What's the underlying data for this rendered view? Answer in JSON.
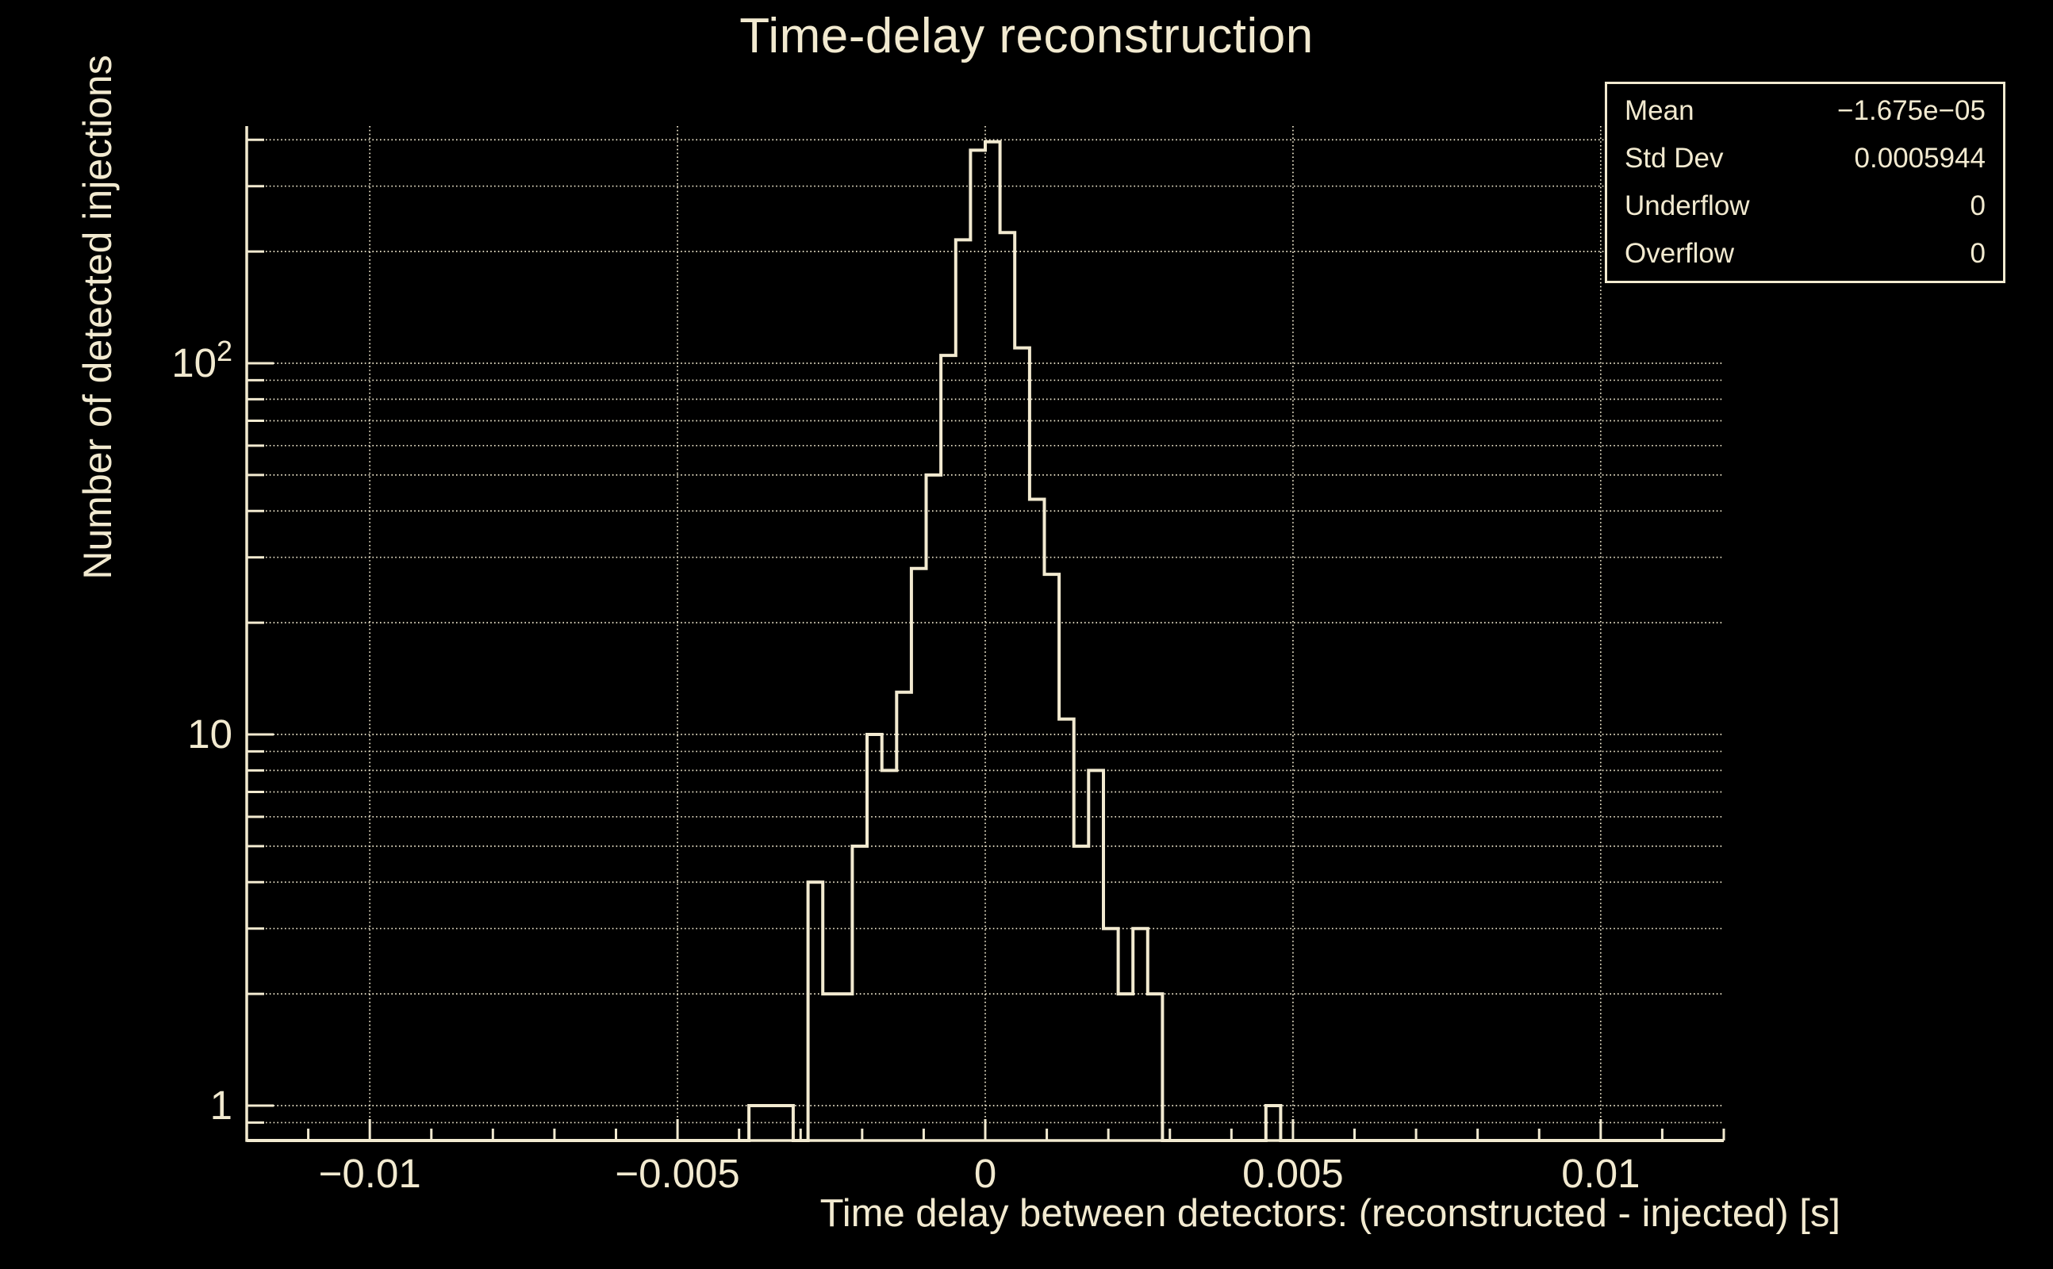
{
  "page": {
    "background": "#000000",
    "foreground": "#f2ead0"
  },
  "title": "Time-delay reconstruction",
  "stats_box": {
    "rows": [
      {
        "label": "Mean",
        "value": "−1.675e−05"
      },
      {
        "label": "Std Dev",
        "value": "0.0005944"
      },
      {
        "label": "Underflow",
        "value": "0"
      },
      {
        "label": "Overflow",
        "value": "0"
      }
    ]
  },
  "chart_data": {
    "type": "bar",
    "subtype": "step-outline-histogram",
    "title": "Time-delay reconstruction",
    "xlabel": "Time delay between detectors: (reconstructed - injected) [s]",
    "ylabel": "Number of detected injections",
    "legend_position": "none",
    "x_axis": {
      "min": -0.012,
      "max": 0.012,
      "major_ticks": [
        -0.01,
        -0.005,
        0,
        0.005,
        0.01
      ],
      "major_tick_labels": [
        "−0.01",
        "−0.005",
        "0",
        "0.005",
        "0.01"
      ],
      "minor_tick_step": 0.001
    },
    "y_axis": {
      "scale": "log",
      "min": 0.8,
      "max": 436,
      "major_ticks": [
        1,
        10,
        100
      ],
      "major_tick_labels": [
        "1",
        "10",
        "10^2"
      ]
    },
    "grid": {
      "style": "dotted",
      "horizontal_at_all_log_ticks": true,
      "vertical_at_major_x_ticks": true
    },
    "bins": {
      "x_min": -0.012,
      "x_max": 0.012,
      "n_bins": 100,
      "bin_width": 0.00024,
      "counts": [
        0,
        0,
        0,
        0,
        0,
        0,
        0,
        0,
        0,
        0,
        0,
        0,
        0,
        0,
        0,
        0,
        0,
        0,
        0,
        0,
        0,
        0,
        0,
        0,
        0,
        0,
        0,
        0,
        0,
        0,
        0,
        0,
        0,
        0,
        1,
        1,
        1,
        0,
        4,
        2,
        2,
        5,
        10,
        8,
        13,
        28,
        50,
        105,
        215,
        375,
        395,
        225,
        110,
        43,
        27,
        11,
        5,
        8,
        3,
        2,
        3,
        2,
        0,
        0,
        0,
        0,
        0,
        0,
        0,
        1,
        0,
        0,
        0,
        0,
        0,
        0,
        0,
        0,
        0,
        0,
        0,
        0,
        0,
        0,
        0,
        0,
        0,
        0,
        0,
        0,
        0,
        0,
        0,
        0,
        0,
        0,
        0,
        0,
        0,
        0
      ]
    }
  }
}
